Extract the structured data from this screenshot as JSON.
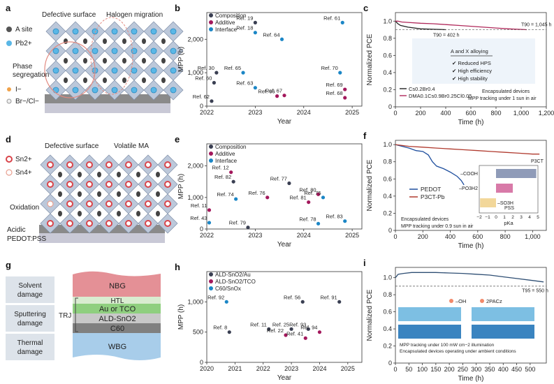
{
  "panels": {
    "a": {
      "letter": "a",
      "callouts": [
        "Defective surface",
        "Halogen migration",
        "Phase segregation"
      ],
      "legend": [
        {
          "label": "A site",
          "kind": "a-site"
        },
        {
          "label": "Pb2+",
          "kind": "pb"
        },
        {
          "label": "I−",
          "kind": "iodide"
        },
        {
          "label": "Br−/Cl−",
          "kind": "brcl"
        }
      ]
    },
    "d": {
      "letter": "d",
      "callouts": [
        "Defective surface",
        "Volatile MA",
        "Oxidation",
        "Acidic PEDOT:PSS"
      ],
      "legend": [
        {
          "label": "Sn2+",
          "kind": "sn2"
        },
        {
          "label": "Sn4+",
          "kind": "sn4"
        }
      ]
    },
    "g": {
      "letter": "g",
      "damage": [
        "Solvent damage",
        "Sputtering damage",
        "Thermal damage"
      ],
      "layers": [
        "NBG",
        "HTL",
        "Au or TCO",
        "ALD-SnO2",
        "C60",
        "WBG"
      ],
      "trj": "TRJ"
    }
  },
  "chart_data": [
    {
      "panel": "b",
      "type": "scatter",
      "xlabel": "Year",
      "ylabel": "MPP (h)",
      "xlim": [
        2022,
        2025.2
      ],
      "ylim": [
        0,
        2800
      ],
      "xticks": [
        "2022",
        "2023",
        "2024",
        "2025"
      ],
      "yticks": [
        "0",
        "1,000",
        "2,000"
      ],
      "legend": [
        "Composition",
        "Additive",
        "Interface"
      ],
      "colors": {
        "Composition": "#3a3f52",
        "Additive": "#a3185c",
        "Interface": "#1b86c6"
      },
      "points": [
        {
          "x": 2022.1,
          "y": 150,
          "label": "Ref. 62",
          "series": "Composition"
        },
        {
          "x": 2022.15,
          "y": 700,
          "label": "Ref. 60",
          "series": "Composition"
        },
        {
          "x": 2022.2,
          "y": 1000,
          "label": "Ref. 30",
          "series": "Composition"
        },
        {
          "x": 2022.75,
          "y": 1000,
          "label": "Ref. 65",
          "series": "Interface"
        },
        {
          "x": 2023.0,
          "y": 550,
          "label": "Ref. 63",
          "series": "Interface"
        },
        {
          "x": 2023.0,
          "y": 2500,
          "label": "Ref. 19",
          "series": "Composition"
        },
        {
          "x": 2023.0,
          "y": 2200,
          "label": "Ref. 18",
          "series": "Interface"
        },
        {
          "x": 2023.45,
          "y": 300,
          "label": "Ref. 66",
          "series": "Additive"
        },
        {
          "x": 2023.6,
          "y": 320,
          "label": "Ref. 67",
          "series": "Additive"
        },
        {
          "x": 2023.55,
          "y": 2000,
          "label": "Ref. 64",
          "series": "Interface"
        },
        {
          "x": 2024.8,
          "y": 2500,
          "label": "Ref. 61",
          "series": "Interface"
        },
        {
          "x": 2024.75,
          "y": 1000,
          "label": "Ref. 70",
          "series": "Interface"
        },
        {
          "x": 2024.85,
          "y": 500,
          "label": "Ref. 69",
          "series": "Additive"
        },
        {
          "x": 2024.85,
          "y": 250,
          "label": "Ref. 68",
          "series": "Additive"
        }
      ]
    },
    {
      "panel": "c",
      "type": "line",
      "xlabel": "Time (h)",
      "ylabel": "Normalized PCE",
      "xlim": [
        0,
        1200
      ],
      "ylim": [
        0,
        1.1
      ],
      "xticks": [
        "0",
        "200",
        "400",
        "600",
        "800",
        "1,000",
        "1,200"
      ],
      "yticks": [
        "0",
        "0.2",
        "0.4",
        "0.6",
        "0.8",
        "1.0"
      ],
      "series": [
        {
          "name": "Cs0.2Br0.4",
          "color": "#222222",
          "x": [
            0,
            20,
            40,
            100,
            200,
            300,
            402
          ],
          "y": [
            1.0,
            0.97,
            0.95,
            0.93,
            0.91,
            0.905,
            0.9
          ]
        },
        {
          "name": "DMA0.1Cs0.9Br0.25Cl0.05",
          "color": "#b0285a",
          "x": [
            0,
            20,
            50,
            100,
            200,
            300,
            400,
            500,
            600,
            700,
            800,
            900,
            1045
          ],
          "y": [
            1.0,
            1.0,
            0.99,
            0.985,
            0.975,
            0.97,
            0.96,
            0.95,
            0.94,
            0.93,
            0.92,
            0.91,
            0.9
          ]
        }
      ],
      "annotations": [
        "T90 = 402 h",
        "T90 = 1,045 h",
        "A and X alloying",
        "✔ Reduced HPS",
        "✔ High efficiency",
        "✔ High stability",
        "Encapsulated devices",
        "MPP tracking under 1 sun in air"
      ]
    },
    {
      "panel": "e",
      "type": "scatter",
      "xlabel": "Year",
      "ylabel": "MPP (h)",
      "xlim": [
        2022,
        2025.2
      ],
      "ylim": [
        0,
        2700
      ],
      "xticks": [
        "2022",
        "2023",
        "2024",
        "2025"
      ],
      "yticks": [
        "0",
        "1,000",
        "2,000"
      ],
      "legend": [
        "Composition",
        "Additive",
        "Interface"
      ],
      "colors": {
        "Composition": "#3a3f52",
        "Additive": "#a3185c",
        "Interface": "#1b86c6"
      },
      "points": [
        {
          "x": 2022.05,
          "y": 200,
          "label": "Ref. 43",
          "series": "Interface"
        },
        {
          "x": 2022.05,
          "y": 600,
          "label": "Ref. 11",
          "series": "Additive"
        },
        {
          "x": 2022.5,
          "y": 1800,
          "label": "Ref. 12",
          "series": "Additive"
        },
        {
          "x": 2022.55,
          "y": 1500,
          "label": "Ref. 82",
          "series": "Composition"
        },
        {
          "x": 2022.6,
          "y": 950,
          "label": "Ref. 74",
          "series": "Interface"
        },
        {
          "x": 2022.85,
          "y": 50,
          "label": "Ref. 79",
          "series": "Composition"
        },
        {
          "x": 2023.25,
          "y": 1000,
          "label": "Ref. 76",
          "series": "Additive"
        },
        {
          "x": 2023.7,
          "y": 1450,
          "label": "Ref. 77",
          "series": "Composition"
        },
        {
          "x": 2024.1,
          "y": 850,
          "label": "Ref. 81",
          "series": "Additive"
        },
        {
          "x": 2024.3,
          "y": 1100,
          "label": "Ref. 80",
          "series": "Additive"
        },
        {
          "x": 2024.4,
          "y": 1000,
          "label": "Ref. 75",
          "series": "Interface"
        },
        {
          "x": 2024.3,
          "y": 170,
          "label": "Ref. 78",
          "series": "Interface"
        },
        {
          "x": 2024.85,
          "y": 250,
          "label": "Ref. 83",
          "series": "Interface"
        }
      ]
    },
    {
      "panel": "f",
      "type": "line",
      "xlabel": "Time (h)",
      "ylabel": "Normalized PCE",
      "xlim": [
        0,
        1100
      ],
      "ylim": [
        0,
        1.05
      ],
      "xticks": [
        "0",
        "200",
        "400",
        "600",
        "800",
        "1,000"
      ],
      "yticks": [
        "0",
        "0.2",
        "0.4",
        "0.6",
        "0.8",
        "1.0"
      ],
      "series": [
        {
          "name": "PEDOT",
          "color": "#1f4f9e",
          "x": [
            0,
            50,
            100,
            150,
            200,
            240,
            270,
            300,
            350,
            400,
            450,
            480,
            500
          ],
          "y": [
            1.0,
            0.98,
            0.96,
            0.93,
            0.92,
            0.88,
            0.8,
            0.75,
            0.72,
            0.68,
            0.63,
            0.58,
            0.53
          ]
        },
        {
          "name": "P3CT-Pb",
          "color": "#b03a2e",
          "x": [
            0,
            100,
            200,
            300,
            400,
            500,
            600,
            700,
            800,
            900,
            1000,
            1050
          ],
          "y": [
            1.0,
            0.98,
            0.97,
            0.96,
            0.95,
            0.94,
            0.93,
            0.92,
            0.91,
            0.9,
            0.89,
            0.89
          ]
        }
      ],
      "annotations": [
        "Encapsulated devices",
        "MPP tracking under 0.9 sun in air"
      ],
      "inset": {
        "xlabel": "pKa",
        "xticks": [
          "−2",
          "−1",
          "0",
          "1",
          "2",
          "3",
          "4",
          "5"
        ],
        "bars": [
          {
            "label": "–COOH",
            "from": 0,
            "to": 4.8,
            "color": "#8f9bb8"
          },
          {
            "label": "–PO3H2",
            "from": 0,
            "to": 2.0,
            "color": "#d87aa8"
          },
          {
            "label": "–SO3H",
            "from": -1.9,
            "to": 0,
            "color": "#f2d79a"
          }
        ],
        "captions": [
          "P3CT",
          "PSS"
        ]
      }
    },
    {
      "panel": "h",
      "type": "scatter",
      "xlabel": "Year",
      "ylabel": "MPP (h)",
      "xlim": [
        2020,
        2025.5
      ],
      "ylim": [
        0,
        1500
      ],
      "xticks": [
        "2020",
        "2021",
        "2022",
        "2023",
        "2024",
        "2025"
      ],
      "yticks": [
        "0",
        "500",
        "1,000"
      ],
      "legend": [
        "ALD-SnO2/Au",
        "ALD-SnO2/TCO",
        "C60/SnOx"
      ],
      "colors": {
        "ALD-SnO2/Au": "#3a3f52",
        "ALD-SnO2/TCO": "#a3185c",
        "C60/SnOx": "#1b86c6"
      },
      "points": [
        {
          "x": 2020.8,
          "y": 500,
          "label": "Ref. 8",
          "series": "ALD-SnO2/Au"
        },
        {
          "x": 2020.7,
          "y": 1000,
          "label": "Ref. 92",
          "series": "C60/SnOx"
        },
        {
          "x": 2022.2,
          "y": 550,
          "label": "Ref. 11",
          "series": "ALD-SnO2/Au"
        },
        {
          "x": 2022.8,
          "y": 450,
          "label": "Ref. 22",
          "series": "ALD-SnO2/TCO"
        },
        {
          "x": 2023.0,
          "y": 550,
          "label": "Ref. 25",
          "series": "ALD-SnO2/Au"
        },
        {
          "x": 2023.5,
          "y": 400,
          "label": "Ref. 41",
          "series": "ALD-SnO2/TCO"
        },
        {
          "x": 2023.4,
          "y": 1000,
          "label": "Ref. 56",
          "series": "ALD-SnO2/Au"
        },
        {
          "x": 2023.6,
          "y": 550,
          "label": "Ref. 93",
          "series": "ALD-SnO2/Au"
        },
        {
          "x": 2024.0,
          "y": 500,
          "label": "Ref. 94",
          "series": "ALD-SnO2/TCO"
        },
        {
          "x": 2024.7,
          "y": 1000,
          "label": "Ref. 91",
          "series": "ALD-SnO2/Au"
        }
      ]
    },
    {
      "panel": "i",
      "type": "line",
      "xlabel": "Time (h)",
      "ylabel": "Normalized PCE",
      "xlim": [
        0,
        560
      ],
      "ylim": [
        0,
        1.12
      ],
      "xticks": [
        "0",
        "50",
        "100",
        "150",
        "200",
        "250",
        "300",
        "350",
        "400",
        "450",
        "500"
      ],
      "yticks": [
        "0",
        "0.2",
        "0.4",
        "0.6",
        "0.8",
        "1.0"
      ],
      "series": [
        {
          "name": "",
          "color": "#2e4e73",
          "x": [
            0,
            10,
            30,
            60,
            100,
            150,
            200,
            250,
            300,
            350,
            400,
            450,
            500,
            550
          ],
          "y": [
            1.0,
            1.04,
            1.05,
            1.06,
            1.06,
            1.06,
            1.055,
            1.05,
            1.04,
            1.03,
            1.01,
            0.99,
            0.97,
            0.95
          ]
        }
      ],
      "annotations": [
        "T95 = 550 h",
        "–OH",
        "2PACz",
        "MPP tracking under 100 mW cm−2 illumination",
        "Encapsulated devices operating under ambient conditions"
      ]
    }
  ]
}
